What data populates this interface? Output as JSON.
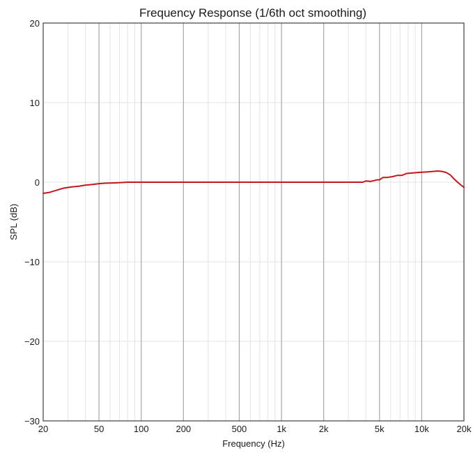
{
  "chart_data": {
    "type": "line",
    "title": "Frequency Response (1/6th oct smoothing)",
    "xlabel": "Frequency (Hz)",
    "ylabel": "SPL (dB)",
    "x_scale": "log",
    "xlim": [
      20,
      20000
    ],
    "ylim": [
      -30,
      20
    ],
    "grid": true,
    "x_ticks": [
      {
        "value": 20,
        "label": "20"
      },
      {
        "value": 50,
        "label": "50"
      },
      {
        "value": 100,
        "label": "100"
      },
      {
        "value": 200,
        "label": "200"
      },
      {
        "value": 500,
        "label": "500"
      },
      {
        "value": 1000,
        "label": "1k"
      },
      {
        "value": 2000,
        "label": "2k"
      },
      {
        "value": 5000,
        "label": "5k"
      },
      {
        "value": 10000,
        "label": "10k"
      },
      {
        "value": 20000,
        "label": "20k"
      }
    ],
    "y_ticks": [
      {
        "value": 20,
        "label": "20"
      },
      {
        "value": 10,
        "label": "10"
      },
      {
        "value": 0,
        "label": "0"
      },
      {
        "value": -10,
        "label": "−10"
      },
      {
        "value": -20,
        "label": "−20"
      },
      {
        "value": -30,
        "label": "−30"
      }
    ],
    "series": [
      {
        "color": "#c4161c",
        "x": [
          20,
          22,
          25,
          28,
          32,
          36,
          40,
          45,
          50,
          56,
          63,
          71,
          80,
          90,
          100,
          200,
          500,
          1000,
          2000,
          3000,
          3800,
          4000,
          4300,
          4600,
          4800,
          5000,
          5300,
          5700,
          6200,
          6700,
          7200,
          7800,
          8500,
          9200,
          10000,
          11000,
          12000,
          13000,
          14000,
          15000,
          16000,
          17000,
          18000,
          19000,
          20000
        ],
        "y": [
          -1.4,
          -1.3,
          -1.0,
          -0.75,
          -0.6,
          -0.5,
          -0.38,
          -0.28,
          -0.18,
          -0.12,
          -0.1,
          -0.05,
          0.0,
          0.0,
          0.0,
          0.0,
          0.0,
          0.0,
          0.0,
          0.0,
          0.0,
          0.15,
          0.1,
          0.2,
          0.3,
          0.3,
          0.6,
          0.6,
          0.7,
          0.85,
          0.85,
          1.1,
          1.15,
          1.2,
          1.25,
          1.3,
          1.35,
          1.4,
          1.35,
          1.2,
          0.9,
          0.4,
          0.0,
          -0.35,
          -0.65
        ]
      }
    ]
  }
}
